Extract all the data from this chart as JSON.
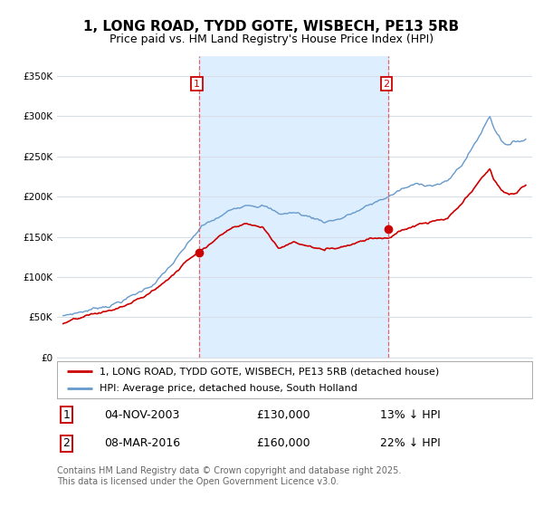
{
  "title": "1, LONG ROAD, TYDD GOTE, WISBECH, PE13 5RB",
  "subtitle": "Price paid vs. HM Land Registry's House Price Index (HPI)",
  "ylim": [
    0,
    375000
  ],
  "yticks": [
    0,
    50000,
    100000,
    150000,
    200000,
    250000,
    300000,
    350000
  ],
  "plot_bg": "#ffffff",
  "fig_bg": "#ffffff",
  "grid_color": "#d8dde8",
  "hpi_color": "#6699cc",
  "shade_color": "#ddeeff",
  "price_color": "#cc0000",
  "vline_color": "#dd6666",
  "marker1_price": 130000,
  "marker2_price": 160000,
  "marker1_year": 2003.833,
  "marker2_year": 2016.167,
  "marker1_label": "04-NOV-2003",
  "marker2_label": "08-MAR-2016",
  "marker1_hpi_pct": "13%",
  "marker2_hpi_pct": "22%",
  "legend_label_price": "1, LONG ROAD, TYDD GOTE, WISBECH, PE13 5RB (detached house)",
  "legend_label_hpi": "HPI: Average price, detached house, South Holland",
  "footnote": "Contains HM Land Registry data © Crown copyright and database right 2025.\nThis data is licensed under the Open Government Licence v3.0.",
  "title_fontsize": 11,
  "subtitle_fontsize": 9,
  "tick_fontsize": 7.5,
  "legend_fontsize": 8,
  "table_fontsize": 9,
  "footnote_fontsize": 7
}
